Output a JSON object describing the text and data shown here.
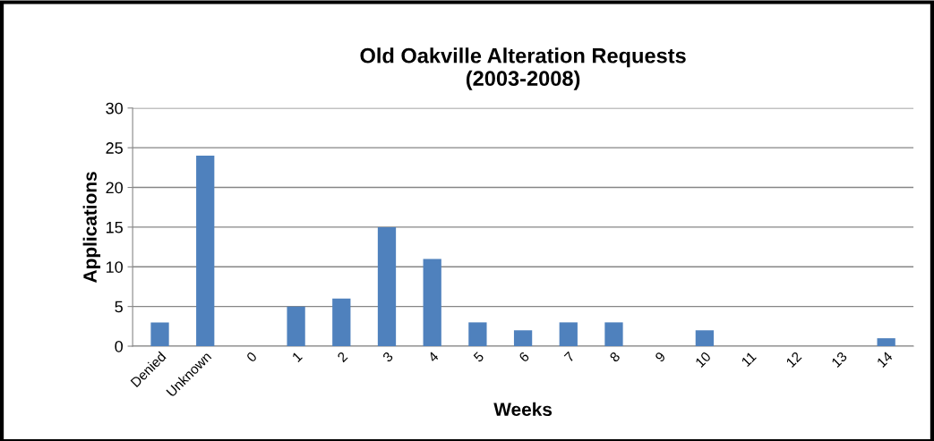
{
  "chart_data": {
    "type": "bar",
    "title": "Old Oakville Alteration Requests\n(2003-2008)",
    "xlabel": "Weeks",
    "ylabel": "Applications",
    "categories": [
      "Denied",
      "Unknown",
      "0",
      "1",
      "2",
      "3",
      "4",
      "5",
      "6",
      "7",
      "8",
      "9",
      "10",
      "11",
      "12",
      "13",
      "14"
    ],
    "values": [
      3,
      24,
      0,
      5,
      6,
      15,
      11,
      3,
      2,
      3,
      3,
      0,
      2,
      0,
      0,
      0,
      1
    ],
    "color": "#4f81bd",
    "ylim": [
      0,
      30
    ],
    "yticks": [
      0,
      5,
      10,
      15,
      20,
      25,
      30
    ],
    "grid": "y",
    "legend": false
  }
}
